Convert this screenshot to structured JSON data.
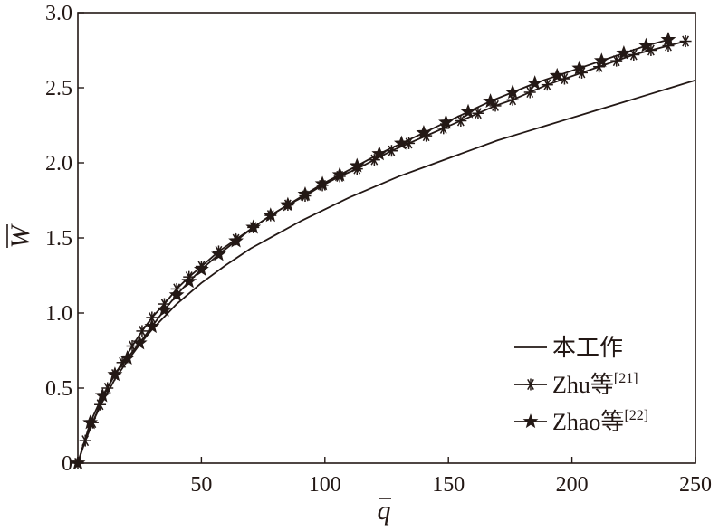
{
  "chart_data": {
    "type": "line",
    "xlabel": "q",
    "ylabel": "W",
    "xlim": [
      0,
      250
    ],
    "ylim": [
      0,
      3.0
    ],
    "x_ticks": [
      {
        "value": 0,
        "label": ""
      },
      {
        "value": 50,
        "label": "50"
      },
      {
        "value": 100,
        "label": "100"
      },
      {
        "value": 150,
        "label": "150"
      },
      {
        "value": 200,
        "label": "200"
      },
      {
        "value": 250,
        "label": "250"
      }
    ],
    "y_ticks": [
      {
        "value": 0,
        "label": "0"
      },
      {
        "value": 0.5,
        "label": "0.5"
      },
      {
        "value": 1.0,
        "label": "1.0"
      },
      {
        "value": 1.5,
        "label": "1.5"
      },
      {
        "value": 2.0,
        "label": "2.0"
      },
      {
        "value": 2.5,
        "label": "2.5"
      },
      {
        "value": 3.0,
        "label": "3.0"
      }
    ],
    "grid": false,
    "legend_position": "bottom-right",
    "line_color": "#231815",
    "series": [
      {
        "name": "本工作",
        "marker": "none",
        "x": [
          0,
          2,
          5,
          10,
          15,
          20,
          25,
          30,
          40,
          50,
          60,
          70,
          80,
          90,
          100,
          110,
          120,
          130,
          140,
          150,
          160,
          170,
          180,
          190,
          200,
          210,
          220,
          230,
          240,
          250
        ],
        "y": [
          0.0,
          0.11,
          0.24,
          0.41,
          0.56,
          0.68,
          0.79,
          0.89,
          1.06,
          1.2,
          1.32,
          1.43,
          1.52,
          1.61,
          1.69,
          1.77,
          1.84,
          1.91,
          1.97,
          2.03,
          2.09,
          2.15,
          2.2,
          2.25,
          2.3,
          2.35,
          2.4,
          2.45,
          2.5,
          2.55
        ]
      },
      {
        "name": "Zhu等",
        "name_superscript": "[21]",
        "marker": "asterisk",
        "x": [
          0,
          3,
          6,
          9,
          12,
          15,
          18,
          22,
          26,
          30,
          35,
          40,
          45,
          50,
          57,
          64,
          71,
          78,
          85,
          92,
          99,
          106,
          113,
          120,
          127,
          134,
          141,
          148,
          155,
          162,
          169,
          176,
          183,
          190,
          197,
          204,
          211,
          218,
          225,
          232,
          239,
          246
        ],
        "y": [
          0.0,
          0.15,
          0.27,
          0.39,
          0.5,
          0.59,
          0.67,
          0.78,
          0.88,
          0.97,
          1.06,
          1.16,
          1.24,
          1.31,
          1.41,
          1.49,
          1.57,
          1.65,
          1.72,
          1.78,
          1.85,
          1.91,
          1.96,
          2.02,
          2.08,
          2.13,
          2.18,
          2.23,
          2.28,
          2.33,
          2.38,
          2.42,
          2.47,
          2.52,
          2.56,
          2.6,
          2.64,
          2.68,
          2.72,
          2.75,
          2.78,
          2.81
        ]
      },
      {
        "name": "Zhao等",
        "name_superscript": "[22]",
        "marker": "star",
        "x": [
          0,
          5,
          10,
          15,
          20,
          25,
          30,
          35,
          40,
          45,
          50,
          57,
          64,
          71,
          78,
          85,
          92,
          99,
          106,
          113,
          122,
          131,
          140,
          149,
          158,
          167,
          176,
          185,
          194,
          203,
          212,
          221,
          230,
          239
        ],
        "y": [
          0.0,
          0.27,
          0.45,
          0.59,
          0.7,
          0.8,
          0.91,
          1.02,
          1.12,
          1.21,
          1.29,
          1.39,
          1.48,
          1.57,
          1.65,
          1.72,
          1.79,
          1.86,
          1.92,
          1.98,
          2.06,
          2.13,
          2.2,
          2.27,
          2.34,
          2.41,
          2.47,
          2.53,
          2.58,
          2.63,
          2.68,
          2.73,
          2.78,
          2.82
        ]
      }
    ]
  }
}
